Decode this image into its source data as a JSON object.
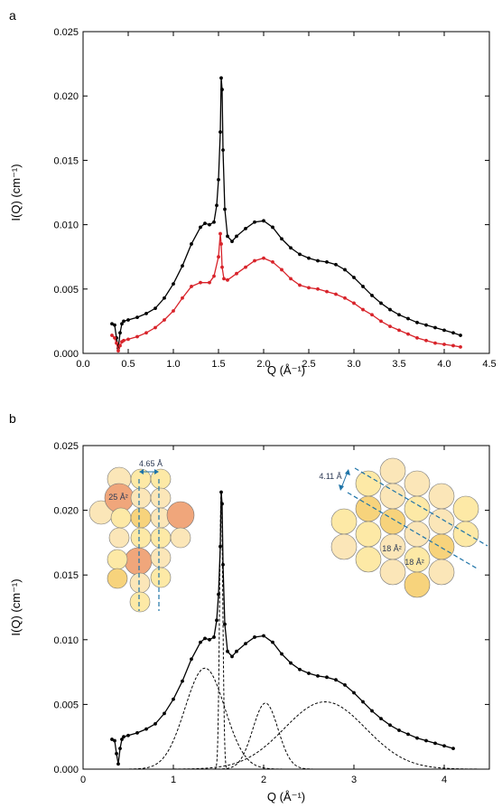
{
  "chart_data": [
    {
      "type": "scatter",
      "panel_label": "a",
      "xlabel": "Q (Å⁻¹)",
      "ylabel": "I(Q) (cm⁻¹)",
      "xlim": [
        0,
        4.5
      ],
      "ylim": [
        0,
        0.025
      ],
      "xticks": [
        "0.0",
        "0.5",
        "1.0",
        "1.5",
        "2.0",
        "2.5",
        "3.0",
        "3.5",
        "4.0",
        "4.5"
      ],
      "yticks": [
        "0.000",
        "0.005",
        "0.010",
        "0.015",
        "0.020",
        "0.025"
      ],
      "grid": false,
      "legend": "none",
      "series": [
        {
          "color": "#000000",
          "x": [
            0.32,
            0.35,
            0.37,
            0.39,
            0.41,
            0.43,
            0.45,
            0.5,
            0.6,
            0.7,
            0.8,
            0.9,
            1.0,
            1.1,
            1.2,
            1.3,
            1.35,
            1.4,
            1.45,
            1.48,
            1.5,
            1.52,
            1.53,
            1.54,
            1.55,
            1.57,
            1.6,
            1.65,
            1.7,
            1.8,
            1.9,
            2.0,
            2.1,
            2.2,
            2.3,
            2.4,
            2.5,
            2.6,
            2.7,
            2.8,
            2.9,
            3.0,
            3.1,
            3.2,
            3.3,
            3.4,
            3.5,
            3.6,
            3.7,
            3.8,
            3.9,
            4.0,
            4.1,
            4.18
          ],
          "y": [
            0.0023,
            0.0022,
            0.0012,
            0.0004,
            0.0016,
            0.0023,
            0.0025,
            0.0026,
            0.0028,
            0.0031,
            0.0035,
            0.0043,
            0.0054,
            0.0068,
            0.0085,
            0.0098,
            0.0101,
            0.01,
            0.0102,
            0.0115,
            0.0135,
            0.0172,
            0.0214,
            0.0205,
            0.0158,
            0.0112,
            0.0091,
            0.0087,
            0.0091,
            0.0097,
            0.0102,
            0.0103,
            0.0098,
            0.0089,
            0.0082,
            0.0077,
            0.0074,
            0.0072,
            0.0071,
            0.0069,
            0.0065,
            0.0059,
            0.0052,
            0.0045,
            0.0039,
            0.0034,
            0.003,
            0.0027,
            0.0024,
            0.0022,
            0.002,
            0.0018,
            0.0016,
            0.0014
          ]
        },
        {
          "color": "#d8232a",
          "x": [
            0.32,
            0.35,
            0.37,
            0.39,
            0.41,
            0.43,
            0.45,
            0.5,
            0.6,
            0.7,
            0.8,
            0.9,
            1.0,
            1.1,
            1.2,
            1.3,
            1.4,
            1.45,
            1.5,
            1.52,
            1.53,
            1.54,
            1.56,
            1.6,
            1.7,
            1.8,
            1.9,
            2.0,
            2.1,
            2.2,
            2.3,
            2.4,
            2.5,
            2.6,
            2.7,
            2.8,
            2.9,
            3.0,
            3.1,
            3.2,
            3.3,
            3.4,
            3.5,
            3.6,
            3.7,
            3.8,
            3.9,
            4.0,
            4.1,
            4.18
          ],
          "y": [
            0.0014,
            0.0012,
            0.0008,
            0.0002,
            0.0006,
            0.0009,
            0.001,
            0.0011,
            0.0013,
            0.0016,
            0.002,
            0.0026,
            0.0033,
            0.0043,
            0.0052,
            0.0055,
            0.0055,
            0.006,
            0.0075,
            0.0093,
            0.0085,
            0.0067,
            0.0058,
            0.0057,
            0.0062,
            0.0067,
            0.0072,
            0.0074,
            0.0071,
            0.0065,
            0.0058,
            0.0053,
            0.0051,
            0.005,
            0.0048,
            0.0046,
            0.0043,
            0.0039,
            0.0034,
            0.003,
            0.0025,
            0.0021,
            0.0018,
            0.0015,
            0.0012,
            0.001,
            0.0008,
            0.0007,
            0.0006,
            0.0005
          ]
        }
      ]
    },
    {
      "type": "scatter",
      "panel_label": "b",
      "xlabel": "Q (Å⁻¹)",
      "ylabel": "I(Q) (cm⁻¹)",
      "xlim": [
        0,
        4.5
      ],
      "ylim": [
        0,
        0.025
      ],
      "xticks": [
        "0",
        "1",
        "2",
        "3",
        "4"
      ],
      "yticks": [
        "0.000",
        "0.005",
        "0.010",
        "0.015",
        "0.020",
        "0.025"
      ],
      "grid": false,
      "legend": "none",
      "series": [
        {
          "color": "#000000",
          "x": [
            0.32,
            0.35,
            0.37,
            0.39,
            0.41,
            0.43,
            0.45,
            0.5,
            0.6,
            0.7,
            0.8,
            0.9,
            1.0,
            1.1,
            1.2,
            1.3,
            1.35,
            1.4,
            1.45,
            1.48,
            1.5,
            1.52,
            1.53,
            1.54,
            1.55,
            1.57,
            1.6,
            1.65,
            1.7,
            1.8,
            1.9,
            2.0,
            2.1,
            2.2,
            2.3,
            2.4,
            2.5,
            2.6,
            2.7,
            2.8,
            2.9,
            3.0,
            3.1,
            3.2,
            3.3,
            3.4,
            3.5,
            3.6,
            3.7,
            3.8,
            3.9,
            4.0,
            4.1
          ],
          "y": [
            0.0023,
            0.0022,
            0.0012,
            0.0004,
            0.0016,
            0.0023,
            0.0025,
            0.0026,
            0.0028,
            0.0031,
            0.0035,
            0.0043,
            0.0054,
            0.0068,
            0.0085,
            0.0098,
            0.0101,
            0.01,
            0.0102,
            0.0115,
            0.0135,
            0.0172,
            0.0214,
            0.0205,
            0.0158,
            0.0112,
            0.0091,
            0.0087,
            0.0091,
            0.0097,
            0.0102,
            0.0103,
            0.0098,
            0.0089,
            0.0082,
            0.0077,
            0.0074,
            0.0072,
            0.0071,
            0.0069,
            0.0065,
            0.0059,
            0.0052,
            0.0045,
            0.0039,
            0.0034,
            0.003,
            0.0027,
            0.0024,
            0.0022,
            0.002,
            0.0018,
            0.0016
          ]
        }
      ],
      "fit_components": [
        {
          "center": 1.35,
          "amplitude": 0.0078,
          "sigma": 0.22
        },
        {
          "center": 1.53,
          "amplitude": 0.0214,
          "sigma": 0.018
        },
        {
          "center": 2.02,
          "amplitude": 0.0051,
          "sigma": 0.14
        },
        {
          "center": 2.68,
          "amplitude": 0.0052,
          "sigma": 0.45
        }
      ],
      "annotations": [
        "4.65 Å",
        "25 Å²",
        "4.11 Å",
        "18 Å²",
        "18 Å²"
      ]
    }
  ]
}
